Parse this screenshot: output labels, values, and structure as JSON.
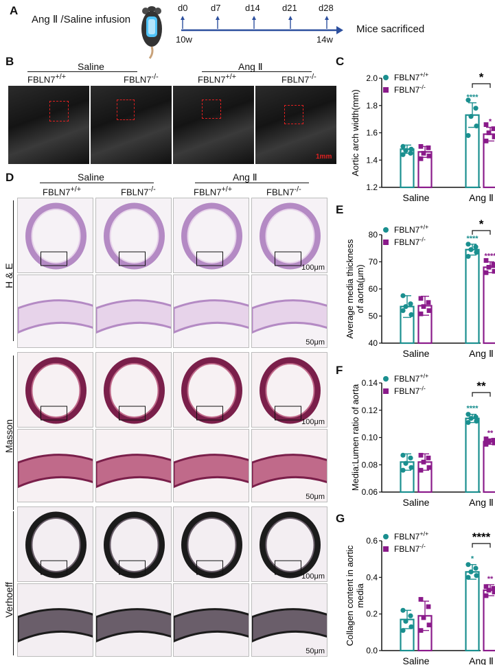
{
  "panelA": {
    "letter": "A",
    "treatment": "Ang Ⅱ /Saline infusion",
    "days": [
      "d0",
      "d7",
      "d14",
      "d21",
      "d28"
    ],
    "start_age": "10w",
    "end_age": "14w",
    "endpoint": "Mice sacrificed"
  },
  "panelB": {
    "letter": "B",
    "group_saline": "Saline",
    "group_ang": "Ang Ⅱ",
    "geno_wt": "FBLN7",
    "geno_wt_sup": "+/+",
    "geno_ko": "FBLN7",
    "geno_ko_sup": "-/-",
    "scalebar": "1mm"
  },
  "panelD": {
    "letter": "D",
    "group_saline": "Saline",
    "group_ang": "Ang Ⅱ",
    "geno_wt": "FBLN7",
    "geno_wt_sup": "+/+",
    "geno_ko": "FBLN7",
    "geno_ko_sup": "-/-",
    "row_he": "H & E",
    "row_masson": "Masson",
    "row_verhoeff": "Verhoeff",
    "scale_100": "100μm",
    "scale_50": "50μm"
  },
  "colors": {
    "wt": "#1a8f8f",
    "ko": "#8a1a8a"
  },
  "chart_data": [
    {
      "panel": "C",
      "type": "bar",
      "ylabel": "Aortic arch width(mm)",
      "ylim": [
        1.2,
        2.0
      ],
      "yticks": [
        "1.2",
        "1.4",
        "1.6",
        "1.8",
        "2.0"
      ],
      "categories": [
        "Saline",
        "Ang Ⅱ"
      ],
      "legend": [
        "FBLN7+/+",
        "FBLN7-/-"
      ],
      "series": [
        {
          "name": "FBLN7+/+",
          "values": [
            1.48,
            1.73
          ],
          "err": [
            0.03,
            0.09
          ],
          "points": [
            [
              1.5,
              1.45,
              1.47,
              1.48,
              1.44
            ],
            [
              1.84,
              1.78,
              1.72,
              1.65,
              1.58
            ]
          ]
        },
        {
          "name": "FBLN7-/-",
          "values": [
            1.46,
            1.59
          ],
          "err": [
            0.04,
            0.05
          ],
          "points": [
            [
              1.5,
              1.49,
              1.45,
              1.43,
              1.41
            ],
            [
              1.66,
              1.63,
              1.6,
              1.57,
              1.54
            ]
          ]
        }
      ],
      "stars": [
        "****",
        "*"
      ],
      "compare": "*"
    },
    {
      "panel": "E",
      "type": "bar",
      "ylabel": "Average media thickness of aorta(μm)",
      "ylim": [
        40,
        80
      ],
      "yticks": [
        "40",
        "50",
        "60",
        "70",
        "80"
      ],
      "categories": [
        "Saline",
        "Ang Ⅱ"
      ],
      "legend": [
        "FBLN7+/+",
        "FBLN7-/-"
      ],
      "series": [
        {
          "name": "FBLN7+/+",
          "values": [
            53.5,
            74.5
          ],
          "err": [
            4.0,
            2.0
          ],
          "points": [
            [
              57.5,
              54.5,
              53.5,
              50.5,
              52.0
            ],
            [
              76.5,
              75.5,
              74.5,
              73.5,
              72.0
            ]
          ]
        },
        {
          "name": "FBLN7-/-",
          "values": [
            53.8,
            68.0
          ],
          "err": [
            3.5,
            2.0
          ],
          "points": [
            [
              56.5,
              55.0,
              53.5,
              52.0,
              50.8
            ],
            [
              70.5,
              69.0,
              68.0,
              66.5,
              66.0
            ]
          ]
        }
      ],
      "stars": [
        "****",
        "****"
      ],
      "compare": "*"
    },
    {
      "panel": "F",
      "type": "bar",
      "ylabel": "Media:Lumen ratio of aorta",
      "ylim": [
        0.06,
        0.14
      ],
      "yticks": [
        "0.06",
        "0.08",
        "0.10",
        "0.12",
        "0.14"
      ],
      "categories": [
        "Saline",
        "Ang Ⅱ"
      ],
      "legend": [
        "FBLN7+/+",
        "FBLN7-/-"
      ],
      "series": [
        {
          "name": "FBLN7+/+",
          "values": [
            0.082,
            0.114
          ],
          "err": [
            0.006,
            0.003
          ],
          "points": [
            [
              0.087,
              0.085,
              0.081,
              0.078,
              0.076
            ],
            [
              0.117,
              0.115,
              0.114,
              0.112,
              0.111
            ]
          ]
        },
        {
          "name": "FBLN7-/-",
          "values": [
            0.082,
            0.097
          ],
          "err": [
            0.006,
            0.002
          ],
          "points": [
            [
              0.087,
              0.085,
              0.082,
              0.078,
              0.076
            ],
            [
              0.099,
              0.098,
              0.097,
              0.096,
              0.095
            ]
          ]
        }
      ],
      "stars": [
        "****",
        "**"
      ],
      "compare": "**"
    },
    {
      "panel": "G",
      "type": "bar",
      "ylabel": "Collagen content in aortic media",
      "ylim": [
        0.0,
        0.6
      ],
      "yticks": [
        "0.0",
        "0.2",
        "0.4",
        "0.6"
      ],
      "categories": [
        "Saline",
        "Ang Ⅱ"
      ],
      "legend": [
        "FBLN7+/+",
        "FBLN7-/-"
      ],
      "series": [
        {
          "name": "FBLN7+/+",
          "values": [
            0.17,
            0.43
          ],
          "err": [
            0.05,
            0.04
          ],
          "points": [
            [
              0.22,
              0.19,
              0.16,
              0.13,
              0.11
            ],
            [
              0.47,
              0.45,
              0.43,
              0.41,
              0.4
            ]
          ]
        },
        {
          "name": "FBLN7-/-",
          "values": [
            0.19,
            0.33
          ],
          "err": [
            0.08,
            0.03
          ],
          "points": [
            [
              0.28,
              0.24,
              0.18,
              0.14,
              0.11
            ],
            [
              0.35,
              0.34,
              0.33,
              0.32,
              0.3
            ]
          ]
        }
      ],
      "stars": [
        "*",
        "**"
      ],
      "compare": "****"
    }
  ]
}
